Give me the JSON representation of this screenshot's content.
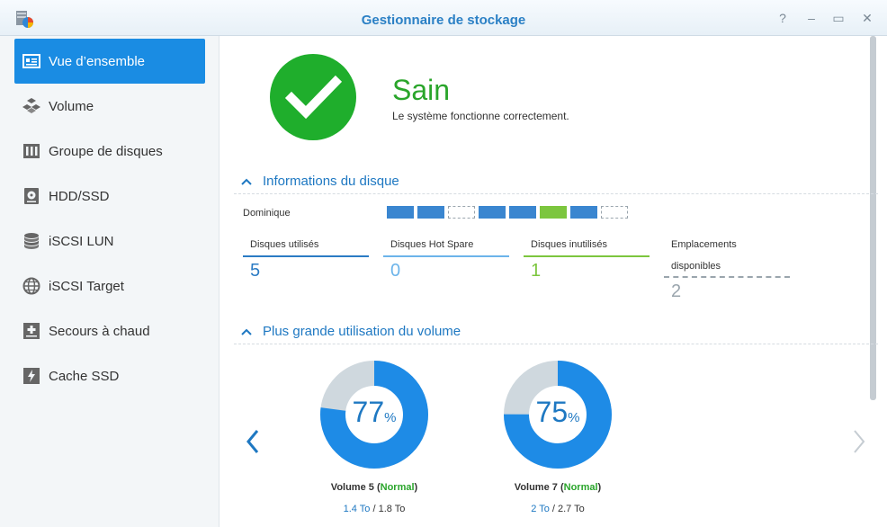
{
  "window": {
    "title": "Gestionnaire de stockage",
    "controls": [
      "?",
      "–",
      "▭",
      "✕"
    ]
  },
  "sidebar": {
    "items": [
      {
        "label": "Vue d’ensemble",
        "icon": "overview-icon",
        "active": true
      },
      {
        "label": "Volume",
        "icon": "volume-icon"
      },
      {
        "label": "Groupe de disques",
        "icon": "disk-group-icon"
      },
      {
        "label": "HDD/SSD",
        "icon": "hdd-icon"
      },
      {
        "label": "iSCSI LUN",
        "icon": "iscsi-lun-icon"
      },
      {
        "label": "iSCSI Target",
        "icon": "iscsi-target-icon"
      },
      {
        "label": "Secours à chaud",
        "icon": "hot-spare-icon"
      },
      {
        "label": "Cache SSD",
        "icon": "ssd-cache-icon"
      }
    ]
  },
  "status": {
    "title": "Sain",
    "description": "Le système fonctionne correctement.",
    "color": "#1fae2c"
  },
  "disk_info": {
    "heading": "Informations du disque",
    "owner": "Dominique",
    "slots": [
      "used",
      "used",
      "empty",
      "used",
      "used",
      "free",
      "used",
      "empty"
    ],
    "stats": [
      {
        "label": "Disques utilisés",
        "value": "5",
        "color": "#2b7bc4"
      },
      {
        "label": "Disques Hot Spare",
        "value": "0",
        "color": "#6cb4ea"
      },
      {
        "label": "Disques inutilisés",
        "value": "1",
        "color": "#7cc63e"
      },
      {
        "label_line1": "Emplacements",
        "label_line2": "disponibles",
        "value": "2",
        "color": "#9aa5ad"
      }
    ]
  },
  "volume_usage": {
    "heading": "Plus grande utilisation du volume",
    "volumes": [
      {
        "name": "Volume 5",
        "state": "Normal",
        "percent": 77,
        "used": "1.4 To",
        "total": "1.8 To"
      },
      {
        "name": "Volume 7",
        "state": "Normal",
        "percent": 75,
        "used": "2 To",
        "total": "2.7 To"
      }
    ]
  }
}
